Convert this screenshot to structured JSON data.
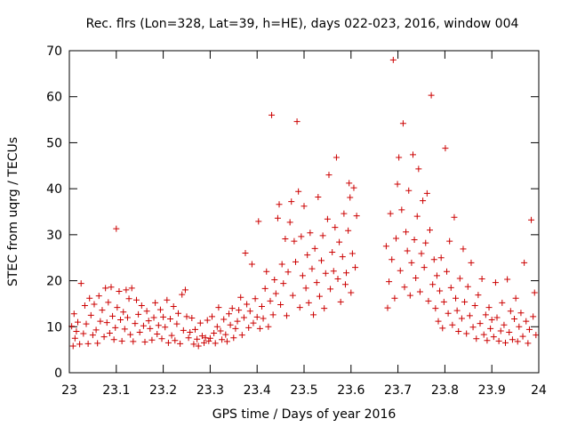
{
  "chart_data": {
    "type": "scatter",
    "title": "Rec. flrs (Lon=328, Lat=39, h=HE), days 022-023, 2016, window 004",
    "xlabel": "GPS time / Days of year 2016",
    "ylabel": "STEC from uqrg / TECUs",
    "xlim": [
      23,
      24
    ],
    "ylim": [
      0,
      70
    ],
    "xticks": [
      23,
      23.1,
      23.2,
      23.3,
      23.4,
      23.5,
      23.6,
      23.7,
      23.8,
      23.9,
      24
    ],
    "xtick_labels": [
      "23",
      "23.1",
      "23.2",
      "23.3",
      "23.4",
      "23.5",
      "23.6",
      "23.7",
      "23.8",
      "23.9",
      "24"
    ],
    "yticks": [
      0,
      10,
      20,
      30,
      40,
      50,
      60,
      70
    ],
    "ytick_labels": [
      "0",
      "10",
      "20",
      "30",
      "40",
      "50",
      "60",
      "70"
    ],
    "grid": false,
    "marker": "+",
    "color": "#cc0000",
    "series": [
      {
        "name": "STEC",
        "points": [
          [
            23.005,
            10.1
          ],
          [
            23.008,
            5.8
          ],
          [
            23.01,
            12.8
          ],
          [
            23.012,
            7.5
          ],
          [
            23.015,
            9.0
          ],
          [
            23.018,
            11.0
          ],
          [
            23.022,
            6.2
          ],
          [
            23.025,
            19.4
          ],
          [
            23.03,
            8.5
          ],
          [
            23.033,
            14.6
          ],
          [
            23.036,
            10.6
          ],
          [
            23.04,
            6.3
          ],
          [
            23.043,
            16.2
          ],
          [
            23.046,
            12.5
          ],
          [
            23.05,
            8.2
          ],
          [
            23.053,
            14.9
          ],
          [
            23.057,
            9.3
          ],
          [
            23.06,
            6.4
          ],
          [
            23.063,
            16.7
          ],
          [
            23.066,
            11.2
          ],
          [
            23.07,
            13.6
          ],
          [
            23.074,
            7.8
          ],
          [
            23.077,
            18.4
          ],
          [
            23.08,
            10.9
          ],
          [
            23.083,
            15.3
          ],
          [
            23.086,
            8.6
          ],
          [
            23.089,
            18.6
          ],
          [
            23.092,
            12.3
          ],
          [
            23.095,
            7.2
          ],
          [
            23.098,
            9.8
          ],
          [
            23.1,
            31.3
          ],
          [
            23.102,
            14.2
          ],
          [
            23.106,
            17.7
          ],
          [
            23.109,
            11.5
          ],
          [
            23.112,
            6.9
          ],
          [
            23.115,
            13.2
          ],
          [
            23.118,
            9.5
          ],
          [
            23.121,
            18.0
          ],
          [
            23.124,
            12.0
          ],
          [
            23.127,
            16.1
          ],
          [
            23.13,
            8.3
          ],
          [
            23.133,
            18.4
          ],
          [
            23.136,
            6.8
          ],
          [
            23.14,
            10.7
          ],
          [
            23.143,
            15.8
          ],
          [
            23.147,
            12.7
          ],
          [
            23.15,
            8.8
          ],
          [
            23.154,
            14.6
          ],
          [
            23.158,
            10.2
          ],
          [
            23.161,
            6.7
          ],
          [
            23.165,
            13.4
          ],
          [
            23.169,
            11.3
          ],
          [
            23.172,
            9.6
          ],
          [
            23.176,
            7.1
          ],
          [
            23.18,
            12.0
          ],
          [
            23.183,
            15.2
          ],
          [
            23.187,
            8.4
          ],
          [
            23.19,
            10.3
          ],
          [
            23.194,
            13.7
          ],
          [
            23.197,
            7.4
          ],
          [
            23.2,
            12.1
          ],
          [
            23.204,
            9.9
          ],
          [
            23.208,
            15.8
          ],
          [
            23.211,
            6.5
          ],
          [
            23.215,
            11.7
          ],
          [
            23.218,
            8.1
          ],
          [
            23.222,
            14.4
          ],
          [
            23.225,
            7.0
          ],
          [
            23.229,
            10.6
          ],
          [
            23.232,
            12.9
          ],
          [
            23.236,
            6.3
          ],
          [
            23.24,
            17.0
          ],
          [
            23.243,
            9.2
          ],
          [
            23.247,
            18.0
          ],
          [
            23.25,
            12.2
          ],
          [
            23.254,
            7.6
          ],
          [
            23.257,
            8.8
          ],
          [
            23.261,
            11.9
          ],
          [
            23.265,
            6.2
          ],
          [
            23.268,
            9.4
          ],
          [
            23.272,
            7.3
          ],
          [
            23.275,
            5.8
          ],
          [
            23.279,
            10.8
          ],
          [
            23.283,
            8.0
          ],
          [
            23.287,
            6.5
          ],
          [
            23.29,
            7.6
          ],
          [
            23.294,
            11.4
          ],
          [
            23.297,
            6.9
          ],
          [
            23.3,
            7.5
          ],
          [
            23.304,
            12.2
          ],
          [
            23.308,
            8.6
          ],
          [
            23.311,
            6.4
          ],
          [
            23.315,
            10.0
          ],
          [
            23.318,
            14.2
          ],
          [
            23.322,
            9.1
          ],
          [
            23.325,
            7.2
          ],
          [
            23.329,
            11.6
          ],
          [
            23.333,
            8.3
          ],
          [
            23.336,
            6.8
          ],
          [
            23.34,
            12.8
          ],
          [
            23.343,
            10.4
          ],
          [
            23.347,
            14.0
          ],
          [
            23.35,
            7.6
          ],
          [
            23.354,
            9.6
          ],
          [
            23.358,
            11.2
          ],
          [
            23.361,
            13.6
          ],
          [
            23.365,
            16.4
          ],
          [
            23.368,
            8.2
          ],
          [
            23.372,
            12.0
          ],
          [
            23.375,
            26.0
          ],
          [
            23.378,
            14.9
          ],
          [
            23.382,
            9.8
          ],
          [
            23.385,
            13.4
          ],
          [
            23.389,
            23.6
          ],
          [
            23.392,
            10.8
          ],
          [
            23.396,
            16.1
          ],
          [
            23.4,
            12.1
          ],
          [
            23.403,
            32.9
          ],
          [
            23.406,
            9.6
          ],
          [
            23.41,
            14.4
          ],
          [
            23.413,
            11.8
          ],
          [
            23.417,
            18.3
          ],
          [
            23.42,
            22.0
          ],
          [
            23.424,
            10.0
          ],
          [
            23.428,
            15.6
          ],
          [
            23.431,
            56.0
          ],
          [
            23.434,
            12.6
          ],
          [
            23.437,
            20.2
          ],
          [
            23.44,
            17.2
          ],
          [
            23.444,
            33.6
          ],
          [
            23.447,
            36.6
          ],
          [
            23.45,
            14.8
          ],
          [
            23.453,
            23.6
          ],
          [
            23.456,
            19.4
          ],
          [
            23.46,
            29.1
          ],
          [
            23.463,
            12.4
          ],
          [
            23.466,
            21.9
          ],
          [
            23.47,
            32.7
          ],
          [
            23.473,
            37.2
          ],
          [
            23.476,
            16.8
          ],
          [
            23.479,
            28.6
          ],
          [
            23.482,
            24.1
          ],
          [
            23.485,
            54.6
          ],
          [
            23.488,
            39.4
          ],
          [
            23.491,
            14.2
          ],
          [
            23.494,
            29.6
          ],
          [
            23.497,
            21.1
          ],
          [
            23.5,
            36.2
          ],
          [
            23.504,
            18.4
          ],
          [
            23.507,
            25.6
          ],
          [
            23.51,
            15.2
          ],
          [
            23.513,
            30.4
          ],
          [
            23.517,
            22.6
          ],
          [
            23.52,
            12.6
          ],
          [
            23.523,
            27.0
          ],
          [
            23.527,
            19.6
          ],
          [
            23.53,
            38.2
          ],
          [
            23.533,
            16.6
          ],
          [
            23.537,
            24.4
          ],
          [
            23.54,
            29.8
          ],
          [
            23.543,
            14.0
          ],
          [
            23.546,
            21.6
          ],
          [
            23.55,
            33.4
          ],
          [
            23.553,
            43.0
          ],
          [
            23.556,
            18.2
          ],
          [
            23.56,
            26.2
          ],
          [
            23.563,
            22.1
          ],
          [
            23.566,
            31.6
          ],
          [
            23.569,
            46.8
          ],
          [
            23.572,
            20.4
          ],
          [
            23.575,
            28.4
          ],
          [
            23.578,
            15.4
          ],
          [
            23.582,
            25.2
          ],
          [
            23.585,
            34.6
          ],
          [
            23.588,
            19.2
          ],
          [
            23.59,
            21.7
          ],
          [
            23.594,
            30.9
          ],
          [
            23.596,
            41.2
          ],
          [
            23.598,
            38.1
          ],
          [
            23.6,
            17.4
          ],
          [
            23.603,
            25.9
          ],
          [
            23.606,
            40.2
          ],
          [
            23.609,
            22.9
          ],
          [
            23.612,
            34.1
          ],
          [
            23.675,
            27.5
          ],
          [
            23.678,
            14.1
          ],
          [
            23.681,
            19.8
          ],
          [
            23.684,
            34.6
          ],
          [
            23.687,
            24.6
          ],
          [
            23.69,
            68.0
          ],
          [
            23.693,
            16.2
          ],
          [
            23.696,
            29.2
          ],
          [
            23.699,
            41.0
          ],
          [
            23.702,
            46.8
          ],
          [
            23.705,
            22.2
          ],
          [
            23.708,
            35.4
          ],
          [
            23.711,
            54.2
          ],
          [
            23.714,
            18.6
          ],
          [
            23.717,
            30.6
          ],
          [
            23.72,
            26.5
          ],
          [
            23.723,
            39.6
          ],
          [
            23.726,
            16.8
          ],
          [
            23.729,
            23.9
          ],
          [
            23.732,
            47.4
          ],
          [
            23.735,
            28.9
          ],
          [
            23.738,
            20.6
          ],
          [
            23.741,
            34.0
          ],
          [
            23.744,
            44.3
          ],
          [
            23.747,
            17.6
          ],
          [
            23.75,
            25.9
          ],
          [
            23.753,
            37.4
          ],
          [
            23.756,
            22.9
          ],
          [
            23.759,
            28.2
          ],
          [
            23.762,
            39.0
          ],
          [
            23.765,
            15.6
          ],
          [
            23.768,
            31.0
          ],
          [
            23.771,
            60.3
          ],
          [
            23.774,
            19.2
          ],
          [
            23.777,
            24.6
          ],
          [
            23.78,
            14.0
          ],
          [
            23.783,
            21.1
          ],
          [
            23.786,
            11.2
          ],
          [
            23.789,
            17.8
          ],
          [
            23.792,
            25.0
          ],
          [
            23.795,
            9.7
          ],
          [
            23.798,
            15.4
          ],
          [
            23.801,
            48.8
          ],
          [
            23.804,
            22.0
          ],
          [
            23.807,
            12.9
          ],
          [
            23.81,
            28.6
          ],
          [
            23.813,
            18.5
          ],
          [
            23.816,
            10.4
          ],
          [
            23.82,
            33.8
          ],
          [
            23.823,
            16.2
          ],
          [
            23.826,
            13.5
          ],
          [
            23.829,
            9.0
          ],
          [
            23.832,
            20.5
          ],
          [
            23.836,
            11.8
          ],
          [
            23.839,
            26.9
          ],
          [
            23.842,
            15.4
          ],
          [
            23.846,
            8.5
          ],
          [
            23.849,
            18.7
          ],
          [
            23.853,
            12.4
          ],
          [
            23.856,
            23.9
          ],
          [
            23.86,
            9.9
          ],
          [
            23.864,
            14.6
          ],
          [
            23.867,
            7.4
          ],
          [
            23.871,
            16.9
          ],
          [
            23.875,
            10.7
          ],
          [
            23.879,
            20.4
          ],
          [
            23.883,
            8.3
          ],
          [
            23.887,
            12.6
          ],
          [
            23.89,
            7.0
          ],
          [
            23.894,
            14.2
          ],
          [
            23.897,
            9.6
          ],
          [
            23.9,
            11.5
          ],
          [
            23.904,
            7.8
          ],
          [
            23.908,
            19.6
          ],
          [
            23.911,
            12.0
          ],
          [
            23.915,
            6.9
          ],
          [
            23.919,
            9.1
          ],
          [
            23.922,
            15.2
          ],
          [
            23.926,
            10.4
          ],
          [
            23.929,
            6.5
          ],
          [
            23.933,
            20.3
          ],
          [
            23.937,
            8.8
          ],
          [
            23.94,
            13.4
          ],
          [
            23.944,
            7.2
          ],
          [
            23.948,
            11.7
          ],
          [
            23.951,
            16.2
          ],
          [
            23.955,
            6.8
          ],
          [
            23.958,
            10.0
          ],
          [
            23.962,
            13.0
          ],
          [
            23.966,
            7.9
          ],
          [
            23.969,
            23.9
          ],
          [
            23.973,
            11.2
          ],
          [
            23.977,
            6.4
          ],
          [
            23.98,
            9.4
          ],
          [
            23.984,
            33.2
          ],
          [
            23.988,
            12.2
          ],
          [
            23.991,
            17.4
          ],
          [
            23.994,
            8.2
          ]
        ]
      }
    ]
  }
}
